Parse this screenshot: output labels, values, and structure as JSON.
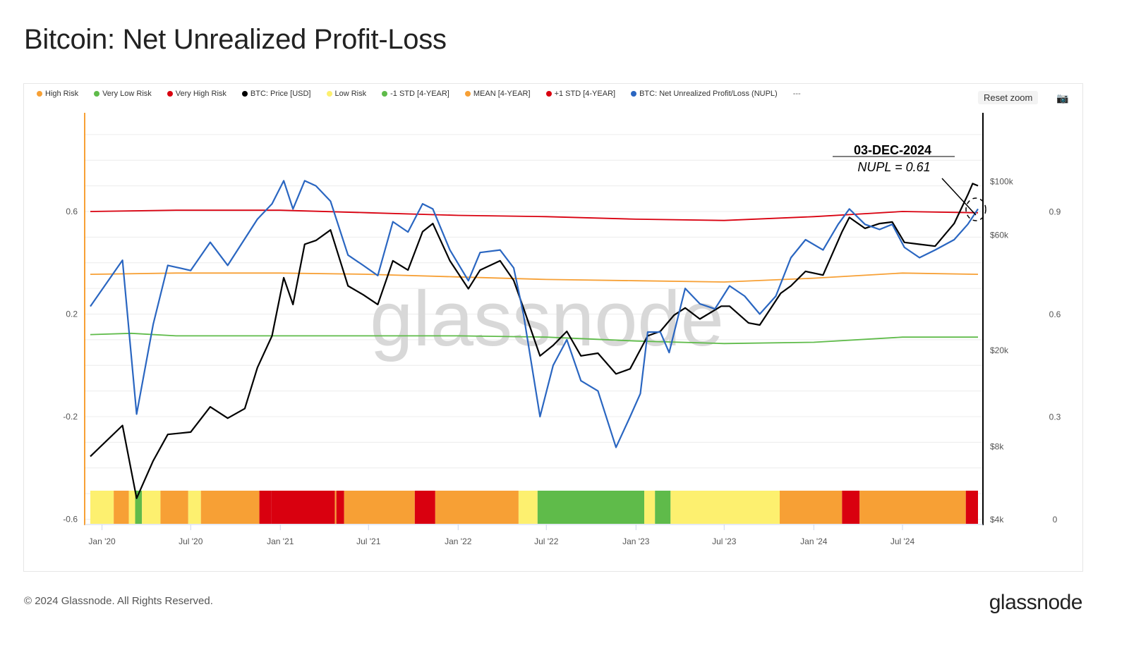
{
  "title": "Bitcoin: Net Unrealized Profit-Loss",
  "legend": [
    {
      "label": "High Risk",
      "color": "#f7a035"
    },
    {
      "label": "Very Low Risk",
      "color": "#5fbb4a"
    },
    {
      "label": "Very High Risk",
      "color": "#d9000f"
    },
    {
      "label": "BTC: Price [USD]",
      "color": "#000000"
    },
    {
      "label": "Low Risk",
      "color": "#fdf06f"
    },
    {
      "label": "-1 STD [4-YEAR]",
      "color": "#5fbb4a"
    },
    {
      "label": "MEAN [4-YEAR]",
      "color": "#f7a035"
    },
    {
      "label": "+1 STD [4-YEAR]",
      "color": "#d9000f"
    },
    {
      "label": "BTC: Net Unrealized Profit/Loss (NUPL)",
      "color": "#2a66c1"
    }
  ],
  "legend_more": "---",
  "reset_zoom": "Reset zoom",
  "camera_icon": "camera-icon",
  "watermark": "glassnode",
  "footer": "© 2024 Glassnode. All Rights Reserved.",
  "logo": "glassnode",
  "annotation": {
    "date": "03-DEC-2024",
    "text": "NUPL = 0.61"
  },
  "chart_data": {
    "type": "line",
    "x_range": [
      "2019-12-08",
      "2024-12-03"
    ],
    "x_ticks": [
      {
        "date": "2020-01-01",
        "label": "Jan '20"
      },
      {
        "date": "2020-07-01",
        "label": "Jul '20"
      },
      {
        "date": "2021-01-01",
        "label": "Jan '21"
      },
      {
        "date": "2021-07-01",
        "label": "Jul '21"
      },
      {
        "date": "2022-01-01",
        "label": "Jan '22"
      },
      {
        "date": "2022-07-01",
        "label": "Jul '22"
      },
      {
        "date": "2023-01-01",
        "label": "Jan '23"
      },
      {
        "date": "2023-07-01",
        "label": "Jul '23"
      },
      {
        "date": "2024-01-01",
        "label": "Jan '24"
      },
      {
        "date": "2024-07-01",
        "label": "Jul '24"
      }
    ],
    "y_left": {
      "range": [
        -0.6,
        0.9
      ],
      "ticks": [
        0.6,
        0.2,
        -0.2,
        -0.6
      ],
      "labels": [
        "0.6",
        "0.2",
        "-0.2",
        "-0.6"
      ]
    },
    "y_price": {
      "scale": "log",
      "range": [
        4000,
        160000
      ],
      "ticks": [
        100000,
        60000,
        20000,
        8000,
        4000
      ],
      "labels": [
        "$100k",
        "$60k",
        "$20k",
        "$8k",
        "$4k"
      ]
    },
    "y_right": {
      "ticks": [
        0.9,
        0.6,
        0.3,
        0
      ],
      "labels": [
        "0.9",
        "0.6",
        "0.3",
        "0"
      ]
    },
    "grid": true,
    "legend_position": "top-left",
    "series": [
      {
        "name": "BTC: Net Unrealized Profit/Loss (NUPL)",
        "axis": "left",
        "color": "#2a66c1",
        "x": [
          "2019-12-08",
          "2020-02-12",
          "2020-03-12",
          "2020-04-15",
          "2020-05-15",
          "2020-07-01",
          "2020-08-10",
          "2020-09-15",
          "2020-11-15",
          "2020-12-15",
          "2021-01-08",
          "2021-01-27",
          "2021-02-20",
          "2021-03-15",
          "2021-04-14",
          "2021-05-20",
          "2021-06-20",
          "2021-07-20",
          "2021-08-20",
          "2021-09-20",
          "2021-10-20",
          "2021-11-10",
          "2021-12-15",
          "2022-01-22",
          "2022-02-15",
          "2022-03-28",
          "2022-04-25",
          "2022-05-15",
          "2022-06-18",
          "2022-07-15",
          "2022-08-12",
          "2022-09-10",
          "2022-10-15",
          "2022-11-21",
          "2022-12-20",
          "2023-01-10",
          "2023-01-25",
          "2023-02-20",
          "2023-03-10",
          "2023-04-12",
          "2023-05-12",
          "2023-06-12",
          "2023-07-12",
          "2023-08-12",
          "2023-09-12",
          "2023-10-15",
          "2023-11-15",
          "2023-12-15",
          "2024-01-20",
          "2024-02-20",
          "2024-03-14",
          "2024-04-15",
          "2024-05-15",
          "2024-06-10",
          "2024-07-05",
          "2024-08-05",
          "2024-09-06",
          "2024-10-15",
          "2024-11-12",
          "2024-12-03"
        ],
        "y": [
          0.23,
          0.41,
          -0.19,
          0.16,
          0.39,
          0.37,
          0.48,
          0.39,
          0.57,
          0.63,
          0.72,
          0.61,
          0.72,
          0.7,
          0.64,
          0.43,
          0.39,
          0.35,
          0.56,
          0.52,
          0.63,
          0.61,
          0.45,
          0.33,
          0.44,
          0.45,
          0.38,
          0.2,
          -0.2,
          0.0,
          0.1,
          -0.06,
          -0.1,
          -0.32,
          -0.2,
          -0.11,
          0.13,
          0.13,
          0.05,
          0.3,
          0.24,
          0.22,
          0.31,
          0.27,
          0.2,
          0.27,
          0.42,
          0.49,
          0.45,
          0.55,
          0.61,
          0.55,
          0.53,
          0.55,
          0.46,
          0.42,
          0.45,
          0.49,
          0.55,
          0.61
        ]
      },
      {
        "name": "BTC: Price [USD]",
        "axis": "price",
        "color": "#000000",
        "x": [
          "2019-12-08",
          "2020-02-12",
          "2020-03-12",
          "2020-04-15",
          "2020-05-15",
          "2020-07-01",
          "2020-08-10",
          "2020-09-15",
          "2020-10-20",
          "2020-11-15",
          "2020-12-15",
          "2021-01-08",
          "2021-01-27",
          "2021-02-20",
          "2021-03-15",
          "2021-04-14",
          "2021-05-20",
          "2021-06-20",
          "2021-07-20",
          "2021-08-20",
          "2021-09-20",
          "2021-10-20",
          "2021-11-10",
          "2021-12-15",
          "2022-01-22",
          "2022-02-15",
          "2022-03-28",
          "2022-04-25",
          "2022-05-15",
          "2022-06-18",
          "2022-07-15",
          "2022-08-12",
          "2022-09-10",
          "2022-10-15",
          "2022-11-21",
          "2022-12-20",
          "2023-01-25",
          "2023-02-20",
          "2023-03-20",
          "2023-04-12",
          "2023-05-12",
          "2023-06-25",
          "2023-07-12",
          "2023-08-20",
          "2023-09-12",
          "2023-10-25",
          "2023-11-15",
          "2023-12-15",
          "2024-01-20",
          "2024-02-28",
          "2024-03-14",
          "2024-04-15",
          "2024-05-15",
          "2024-06-10",
          "2024-07-05",
          "2024-08-05",
          "2024-09-06",
          "2024-10-15",
          "2024-11-12",
          "2024-11-22",
          "2024-12-03"
        ],
        "y": [
          7300,
          9800,
          4900,
          7000,
          9000,
          9200,
          11700,
          10500,
          11500,
          17000,
          23000,
          40000,
          31000,
          55000,
          57000,
          63000,
          37000,
          34000,
          31000,
          47000,
          43000,
          62000,
          67000,
          47000,
          36000,
          43000,
          47000,
          39000,
          30000,
          19000,
          21000,
          24000,
          19000,
          19500,
          16000,
          16800,
          23000,
          24000,
          28000,
          30000,
          27000,
          30500,
          30500,
          26000,
          25500,
          34500,
          37000,
          42500,
          41000,
          62000,
          71000,
          64000,
          67000,
          68000,
          56000,
          55000,
          54000,
          67000,
          88000,
          98000,
          96000
        ]
      },
      {
        "name": "MEAN [4-YEAR]",
        "axis": "left",
        "color": "#f7a035",
        "x": [
          "2019-12-08",
          "2020-06-01",
          "2021-01-01",
          "2021-07-01",
          "2022-01-01",
          "2022-07-01",
          "2023-01-01",
          "2023-07-01",
          "2024-01-01",
          "2024-07-01",
          "2024-12-03"
        ],
        "y": [
          0.355,
          0.36,
          0.36,
          0.355,
          0.345,
          0.335,
          0.33,
          0.325,
          0.34,
          0.36,
          0.355
        ]
      },
      {
        "name": "+1 STD [4-YEAR]",
        "axis": "left",
        "color": "#d9000f",
        "x": [
          "2019-12-08",
          "2020-06-01",
          "2021-01-01",
          "2021-07-01",
          "2022-01-01",
          "2022-07-01",
          "2023-01-01",
          "2023-07-01",
          "2024-01-01",
          "2024-07-01",
          "2024-12-03"
        ],
        "y": [
          0.6,
          0.605,
          0.605,
          0.595,
          0.585,
          0.58,
          0.57,
          0.565,
          0.58,
          0.6,
          0.595
        ]
      },
      {
        "name": "-1 STD [4-YEAR]",
        "axis": "left",
        "color": "#5fbb4a",
        "x": [
          "2019-12-08",
          "2020-03-01",
          "2020-06-01",
          "2021-01-01",
          "2021-07-01",
          "2022-01-01",
          "2022-07-01",
          "2023-01-01",
          "2023-07-01",
          "2024-01-01",
          "2024-07-01",
          "2024-12-03"
        ],
        "y": [
          0.12,
          0.125,
          0.115,
          0.115,
          0.115,
          0.115,
          0.11,
          0.095,
          0.085,
          0.09,
          0.11,
          0.11
        ]
      }
    ],
    "risk_bands": [
      {
        "start": "2019-12-08",
        "risk": "Low Risk",
        "color": "#fdf06f"
      },
      {
        "start": "2020-01-25",
        "risk": "High Risk",
        "color": "#f7a035"
      },
      {
        "start": "2020-02-25",
        "risk": "Low Risk",
        "color": "#fdf06f"
      },
      {
        "start": "2020-03-09",
        "risk": "Very Low Risk",
        "color": "#5fbb4a"
      },
      {
        "start": "2020-03-23",
        "risk": "Low Risk",
        "color": "#fdf06f"
      },
      {
        "start": "2020-04-30",
        "risk": "High Risk",
        "color": "#f7a035"
      },
      {
        "start": "2020-06-26",
        "risk": "Low Risk",
        "color": "#fdf06f"
      },
      {
        "start": "2020-07-22",
        "risk": "High Risk",
        "color": "#f7a035"
      },
      {
        "start": "2020-11-19",
        "risk": "Very High Risk",
        "color": "#d9000f"
      },
      {
        "start": "2020-12-14",
        "risk": "Very High Risk",
        "color": "#d9000f"
      },
      {
        "start": "2021-04-23",
        "risk": "High Risk",
        "color": "#f7a035"
      },
      {
        "start": "2021-04-26",
        "risk": "Very High Risk",
        "color": "#d9000f"
      },
      {
        "start": "2021-05-12",
        "risk": "High Risk",
        "color": "#f7a035"
      },
      {
        "start": "2021-10-04",
        "risk": "Very High Risk",
        "color": "#d9000f"
      },
      {
        "start": "2021-11-15",
        "risk": "High Risk",
        "color": "#f7a035"
      },
      {
        "start": "2022-05-05",
        "risk": "Low Risk",
        "color": "#fdf06f"
      },
      {
        "start": "2022-06-13",
        "risk": "Very Low Risk",
        "color": "#5fbb4a"
      },
      {
        "start": "2023-01-18",
        "risk": "Low Risk",
        "color": "#fdf06f"
      },
      {
        "start": "2023-02-09",
        "risk": "Very Low Risk",
        "color": "#5fbb4a"
      },
      {
        "start": "2023-03-13",
        "risk": "Low Risk",
        "color": "#fdf06f"
      },
      {
        "start": "2023-10-23",
        "risk": "High Risk",
        "color": "#f7a035"
      },
      {
        "start": "2024-02-28",
        "risk": "Very High Risk",
        "color": "#d9000f"
      },
      {
        "start": "2024-04-04",
        "risk": "High Risk",
        "color": "#f7a035"
      },
      {
        "start": "2024-11-08",
        "risk": "Very High Risk",
        "color": "#d9000f"
      }
    ]
  }
}
